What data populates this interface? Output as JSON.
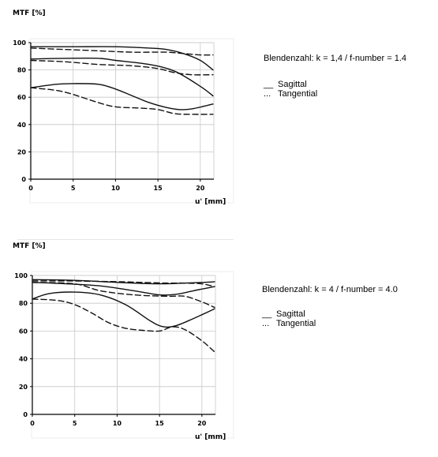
{
  "chart_data": [
    {
      "type": "line",
      "ylabel": "MTF [%]",
      "xlabel": "u' [mm]",
      "xlim": [
        0,
        21.6
      ],
      "ylim": [
        0,
        100
      ],
      "xticks": [
        0,
        5,
        10,
        15,
        20
      ],
      "yticks": [
        0,
        20,
        40,
        60,
        80,
        100
      ],
      "caption": "Blendenzahl: k = 1,4 / f-number = 1.4",
      "legend": {
        "sagittal": "Sagittal",
        "sagittal_symbol": "__",
        "tangential": "Tangential",
        "tangential_symbol": "..."
      },
      "grid": true,
      "series": [
        {
          "style": "solid",
          "x": [
            0,
            5,
            10,
            14,
            16,
            18,
            20,
            21.5
          ],
          "y": [
            97,
            97,
            97,
            96,
            95,
            92,
            87,
            80
          ]
        },
        {
          "style": "dashed",
          "x": [
            0,
            4,
            8,
            12,
            16,
            18,
            20,
            21.5
          ],
          "y": [
            96,
            95,
            94,
            93,
            93,
            92,
            91,
            91
          ]
        },
        {
          "style": "solid",
          "x": [
            0,
            4,
            8,
            10,
            14,
            17,
            20,
            21.5
          ],
          "y": [
            88,
            88.5,
            88.5,
            87,
            84,
            79,
            68,
            61
          ]
        },
        {
          "style": "dashed",
          "x": [
            0,
            4,
            8,
            12,
            15,
            17,
            19,
            21.5
          ],
          "y": [
            87,
            86,
            84,
            83,
            81,
            78,
            76.5,
            76.5
          ]
        },
        {
          "style": "solid",
          "x": [
            0,
            3,
            5,
            8,
            10,
            12,
            14,
            16,
            17.5,
            19,
            21.5
          ],
          "y": [
            67,
            69.5,
            70,
            69.5,
            66,
            61,
            56,
            52.5,
            51,
            51.5,
            55
          ]
        },
        {
          "style": "dashed",
          "x": [
            0,
            3,
            5,
            8,
            10,
            13,
            15,
            17,
            19,
            21.5
          ],
          "y": [
            67,
            65,
            62,
            56,
            53,
            52,
            51,
            48,
            47.5,
            47.5
          ]
        }
      ]
    },
    {
      "type": "line",
      "ylabel": "MTF [%]",
      "xlabel": "u' [mm]",
      "xlim": [
        0,
        21.6
      ],
      "ylim": [
        0,
        100
      ],
      "xticks": [
        0,
        5,
        10,
        15,
        20
      ],
      "yticks": [
        0,
        20,
        40,
        60,
        80,
        100
      ],
      "caption": "Blendenzahl: k = 4 / f-number = 4.0",
      "legend": {
        "sagittal": "Sagittal",
        "sagittal_symbol": "__",
        "tangential": "Tangential",
        "tangential_symbol": "..."
      },
      "grid": true,
      "series": [
        {
          "style": "solid",
          "x": [
            0,
            5,
            10,
            15,
            20,
            21.5
          ],
          "y": [
            97,
            96.5,
            95,
            94,
            95,
            95.5
          ]
        },
        {
          "style": "dashed",
          "x": [
            0,
            5,
            10,
            13,
            16,
            18,
            20,
            21.5
          ],
          "y": [
            96,
            96,
            95.5,
            95,
            94.5,
            94.5,
            94,
            92
          ]
        },
        {
          "style": "solid",
          "x": [
            0,
            4,
            8,
            12,
            15,
            17,
            19,
            21.5
          ],
          "y": [
            95,
            94,
            92.5,
            89,
            86,
            86.5,
            89,
            92
          ]
        },
        {
          "style": "dashed",
          "x": [
            0,
            5,
            8,
            12,
            16,
            18,
            20,
            21.5
          ],
          "y": [
            95,
            94,
            89,
            86,
            85,
            85,
            81,
            77
          ]
        },
        {
          "style": "solid",
          "x": [
            0,
            2,
            5,
            8,
            11,
            14,
            15.5,
            17,
            19,
            21.5
          ],
          "y": [
            83,
            87,
            88,
            86,
            79,
            67,
            63,
            64,
            69,
            76
          ]
        },
        {
          "style": "dashed",
          "x": [
            0,
            3,
            5,
            7,
            9,
            11,
            13,
            15,
            16.5,
            18,
            20,
            21.5
          ],
          "y": [
            83,
            82,
            79,
            73,
            66,
            62,
            60.5,
            60,
            63,
            61,
            53,
            45
          ]
        }
      ]
    }
  ]
}
